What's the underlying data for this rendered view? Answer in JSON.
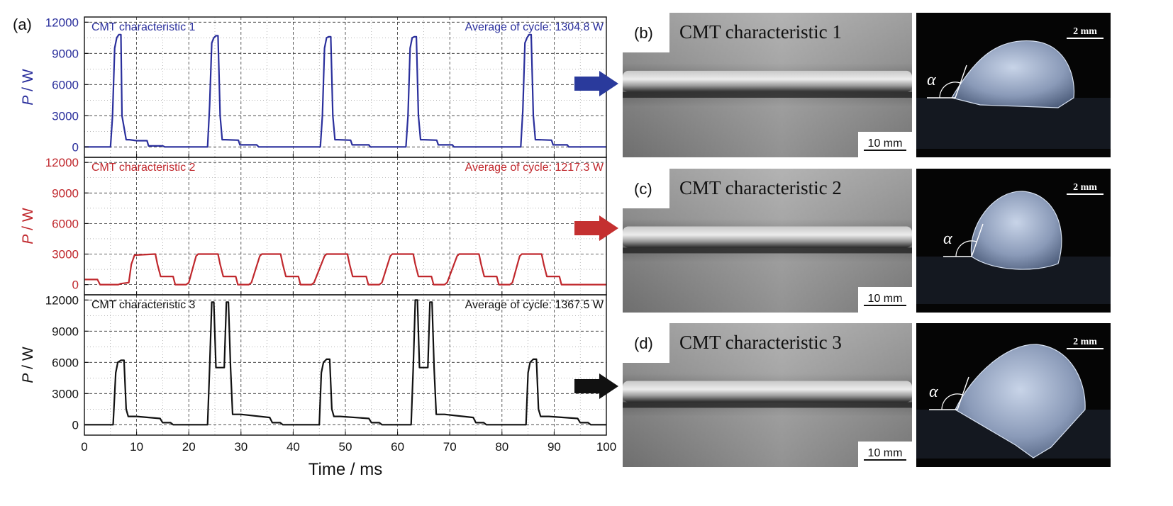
{
  "panel_labels": {
    "a": "(a)",
    "b": "(b)",
    "c": "(c)",
    "d": "(d)"
  },
  "chart_data": {
    "type": "line",
    "xlabel": "Time / ms",
    "xlim": [
      0,
      100
    ],
    "x_ticks": [
      0,
      10,
      20,
      30,
      40,
      50,
      60,
      70,
      80,
      90,
      100
    ],
    "grid": true,
    "panels": [
      {
        "name": "CMT characteristic 1",
        "annotation": "Average of cycle: 1304.8 W",
        "ylabel_italic": "P",
        "ylabel_unit": " / W",
        "ylim": [
          -1000,
          12500
        ],
        "y_ticks": [
          0,
          3000,
          6000,
          9000,
          12000
        ],
        "color": "#2a2f9c",
        "series": {
          "x": [
            0,
            5,
            5.4,
            5.8,
            6.2,
            6.6,
            7,
            7.2,
            8,
            8.6,
            10,
            12,
            12.3,
            15,
            15.4,
            20,
            23.6,
            24,
            24.4,
            24.8,
            25.2,
            25.6,
            26,
            26.4,
            27,
            29.5,
            29.8,
            33,
            33.4,
            38,
            45.2,
            45.6,
            46,
            46.4,
            46.8,
            47.2,
            47.6,
            48,
            48.6,
            51,
            51.3,
            54.5,
            54.8,
            58,
            61.6,
            62,
            62.4,
            62.8,
            63.2,
            63.6,
            64,
            64.4,
            65,
            67.5,
            67.8,
            70.5,
            70.8,
            76,
            83.6,
            84,
            84.4,
            84.8,
            85.2,
            85.6,
            86,
            86.4,
            87,
            89.5,
            89.8,
            92.5,
            92.8,
            100
          ],
          "y": [
            0,
            0,
            3000,
            9500,
            10500,
            10800,
            10800,
            3000,
            700,
            700,
            600,
            600,
            100,
            100,
            0,
            0,
            0,
            4000,
            10000,
            10500,
            10700,
            10700,
            3000,
            700,
            700,
            650,
            200,
            200,
            0,
            0,
            0,
            3000,
            9500,
            10500,
            10600,
            10600,
            3000,
            700,
            700,
            650,
            200,
            200,
            0,
            0,
            0,
            3000,
            9500,
            10500,
            10600,
            10600,
            3000,
            700,
            700,
            650,
            200,
            200,
            0,
            0,
            0,
            3500,
            10000,
            10500,
            10800,
            10800,
            3000,
            700,
            700,
            650,
            200,
            200,
            0,
            0
          ]
        }
      },
      {
        "name": "CMT characteristic 2",
        "annotation": "Average of cycle: 1217.3 W",
        "ylabel_italic": "P",
        "ylabel_unit": " / W",
        "ylim": [
          -1000,
          12500
        ],
        "y_ticks": [
          0,
          3000,
          6000,
          9000,
          12000
        ],
        "color": "#c0282d",
        "series": {
          "x": [
            0,
            2.5,
            3,
            6.5,
            7,
            8.5,
            9,
            9.6,
            13.6,
            14,
            14.6,
            17,
            17.4,
            19.5,
            20,
            21.4,
            21.8,
            25.6,
            26,
            26.6,
            29,
            29.4,
            31.5,
            32,
            33.6,
            34,
            37.6,
            38,
            38.6,
            41,
            41.4,
            43.5,
            44,
            46,
            46.4,
            50.4,
            50.8,
            51.4,
            54,
            54.4,
            56.5,
            57,
            58.6,
            59,
            63,
            63.4,
            64,
            66.5,
            66.9,
            69,
            69.5,
            71.4,
            71.8,
            75.6,
            76,
            76.6,
            79,
            79.4,
            81.5,
            82,
            83.4,
            83.8,
            87.6,
            88,
            88.6,
            91,
            91.4,
            100
          ],
          "y": [
            500,
            500,
            0,
            0,
            100,
            200,
            2000,
            2900,
            3000,
            2000,
            800,
            800,
            0,
            0,
            200,
            2800,
            3000,
            3000,
            2000,
            800,
            800,
            0,
            0,
            200,
            2800,
            3000,
            3000,
            2000,
            800,
            800,
            0,
            0,
            200,
            2800,
            3000,
            3000,
            2000,
            800,
            800,
            0,
            0,
            200,
            2800,
            3000,
            3000,
            2000,
            800,
            800,
            0,
            0,
            200,
            2800,
            3000,
            3000,
            2000,
            800,
            800,
            0,
            0,
            200,
            2800,
            3000,
            3000,
            2000,
            800,
            800,
            0,
            0
          ]
        }
      },
      {
        "name": "CMT characteristic 3",
        "annotation": "Average of cycle: 1367.5 W",
        "ylabel_italic": "P",
        "ylabel_unit": " / W",
        "ylim": [
          -1000,
          12500
        ],
        "y_ticks": [
          0,
          3000,
          6000,
          9000,
          12000
        ],
        "color": "#111111",
        "series": {
          "x": [
            0,
            5.5,
            6,
            6.4,
            7,
            7.6,
            8,
            8.4,
            10,
            14.5,
            15,
            16.5,
            17,
            23.6,
            24,
            24.4,
            24.8,
            25.2,
            26,
            26.8,
            27.2,
            27.6,
            28,
            28.4,
            30,
            35.5,
            36,
            37.5,
            38,
            45,
            45.4,
            45.8,
            46.4,
            47,
            47.4,
            47.8,
            49,
            54.5,
            55,
            56.5,
            57,
            62.6,
            63,
            63.4,
            63.8,
            64.2,
            65,
            65.8,
            66.2,
            66.6,
            67,
            67.4,
            69,
            74.5,
            75,
            76.5,
            77,
            84.6,
            85,
            85.4,
            86,
            86.6,
            87,
            87.4,
            89,
            94.5,
            95,
            96.5,
            97,
            100
          ],
          "y": [
            0,
            0,
            5000,
            6000,
            6200,
            6200,
            1500,
            800,
            800,
            600,
            200,
            200,
            0,
            0,
            5500,
            11800,
            11800,
            5500,
            5500,
            5500,
            11800,
            11800,
            5500,
            1000,
            1000,
            700,
            200,
            200,
            0,
            0,
            5000,
            6000,
            6300,
            6300,
            1500,
            800,
            800,
            600,
            200,
            200,
            0,
            0,
            5500,
            12000,
            12000,
            5500,
            5500,
            5500,
            11800,
            11800,
            5500,
            1000,
            1000,
            700,
            200,
            200,
            0,
            0,
            5000,
            6000,
            6300,
            6300,
            1500,
            800,
            800,
            600,
            200,
            200,
            0,
            0
          ]
        }
      }
    ]
  },
  "photos": [
    {
      "caption": "CMT characteristic 1",
      "scale_bar": "10 mm",
      "cross_section_scale": "2 mm",
      "angle_symbol": "α",
      "arrow_color": "#2a3a9c"
    },
    {
      "caption": "CMT characteristic 2",
      "scale_bar": "10 mm",
      "cross_section_scale": "2 mm",
      "angle_symbol": "α",
      "arrow_color": "#c43030"
    },
    {
      "caption": "CMT characteristic 3",
      "scale_bar": "10 mm",
      "cross_section_scale": "2 mm",
      "angle_symbol": "α",
      "arrow_color": "#111111"
    }
  ]
}
